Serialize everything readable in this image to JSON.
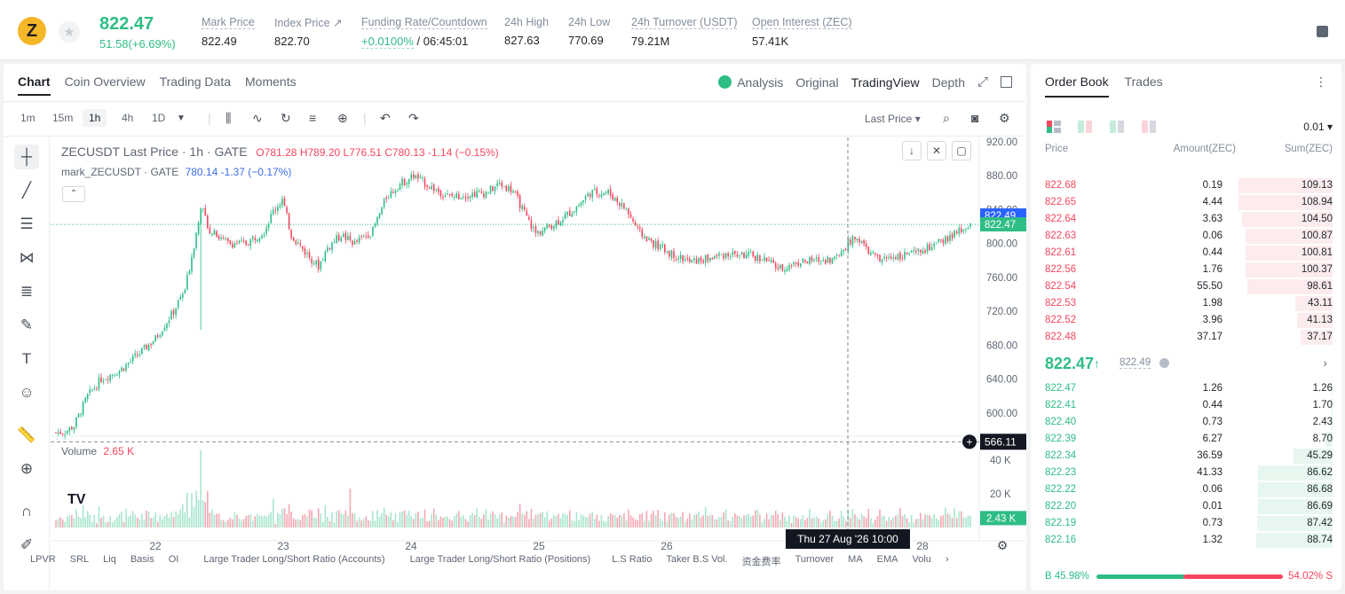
{
  "header": {
    "coin_symbol_glyph": "Z",
    "last_price": "822.47",
    "change": "51.58(+6.69%)",
    "stats": [
      {
        "label": "Mark Price",
        "value": "822.49"
      },
      {
        "label": "Index Price ↗",
        "value": "822.70"
      },
      {
        "label": "Funding Rate/Countdown",
        "value_rate": "+0.0100%",
        "value_countdown": "/ 06:45:01"
      },
      {
        "label": "24h High",
        "value": "827.63"
      },
      {
        "label": "24h Low",
        "value": "770.69"
      },
      {
        "label": "24h Turnover (USDT)",
        "value": "79.21M"
      },
      {
        "label": "Open Interest (ZEC)",
        "value": "57.41K"
      }
    ]
  },
  "chart_panel": {
    "tabs": [
      "Chart",
      "Coin Overview",
      "Trading Data",
      "Moments"
    ],
    "active_tab": "Chart",
    "right_tabs": [
      "Analysis",
      "Original",
      "TradingView",
      "Depth"
    ],
    "timeframes": [
      "1m",
      "15m",
      "1h",
      "4h",
      "1D"
    ],
    "active_timeframe": "1h",
    "price_type": "Last Price",
    "legend_symbol": "ZECUSDT Last Price · 1h · GATE",
    "legend_ohlc": {
      "o": "O781.28",
      "h": "H789.20",
      "l": "L776.51",
      "c": "C780.13",
      "chg": "-1.14 (−0.15%)"
    },
    "mark_legend": "mark_ZECUSDT · GATE",
    "mark_values": "780.14 -1.37 (−0.17%)",
    "volume_label": "Volume",
    "volume_value": "2.65 K",
    "crosshair_time": "Thu 27 Aug '26   10:00",
    "crosshair_price": "566.11",
    "mark_price_tag": "822.49",
    "last_price_tag": "822.47",
    "volume_tag": "2.43 K",
    "bottom_indicators": [
      "LPVR",
      "SRL",
      "Liq",
      "Basis",
      "OI",
      "Large Trader Long/Short Ratio (Accounts)",
      "Large Trader Long/Short Ratio (Positions)",
      "L.S Ratio",
      "Taker B.S Vol.",
      "资金费率",
      "Turnover",
      "MA",
      "EMA",
      "Volu"
    ]
  },
  "chart_data": {
    "type": "candlestick",
    "y_ticks": [
      "920.00",
      "880.00",
      "840.00",
      "800.00",
      "760.00",
      "720.00",
      "680.00",
      "640.00",
      "600.00"
    ],
    "ylim": [
      580,
      925
    ],
    "volume_ticks": [
      "40 K",
      "20 K"
    ],
    "volume_ylim": [
      0,
      50
    ],
    "x_ticks": [
      "22",
      "23",
      "24",
      "25",
      "26",
      "28"
    ],
    "anchors": [
      [
        0,
        577
      ],
      [
        4,
        578
      ],
      [
        8,
        585
      ],
      [
        14,
        620
      ],
      [
        20,
        640
      ],
      [
        28,
        650
      ],
      [
        36,
        668
      ],
      [
        44,
        688
      ],
      [
        52,
        720
      ],
      [
        57,
        745
      ],
      [
        62,
        812
      ],
      [
        64,
        845
      ],
      [
        68,
        815
      ],
      [
        76,
        800
      ],
      [
        84,
        800
      ],
      [
        92,
        815
      ],
      [
        96,
        838
      ],
      [
        100,
        852
      ],
      [
        104,
        810
      ],
      [
        110,
        790
      ],
      [
        116,
        773
      ],
      [
        120,
        795
      ],
      [
        126,
        810
      ],
      [
        132,
        800
      ],
      [
        140,
        815
      ],
      [
        146,
        855
      ],
      [
        152,
        870
      ],
      [
        158,
        880
      ],
      [
        166,
        866
      ],
      [
        174,
        855
      ],
      [
        182,
        858
      ],
      [
        190,
        860
      ],
      [
        196,
        870
      ],
      [
        202,
        862
      ],
      [
        208,
        830
      ],
      [
        212,
        812
      ],
      [
        220,
        823
      ],
      [
        228,
        838
      ],
      [
        236,
        860
      ],
      [
        244,
        860
      ],
      [
        252,
        840
      ],
      [
        258,
        812
      ],
      [
        264,
        800
      ],
      [
        272,
        788
      ],
      [
        280,
        778
      ],
      [
        288,
        782
      ],
      [
        296,
        788
      ],
      [
        304,
        786
      ],
      [
        312,
        783
      ],
      [
        320,
        770
      ],
      [
        328,
        778
      ],
      [
        336,
        780
      ],
      [
        344,
        782
      ],
      [
        350,
        800
      ],
      [
        354,
        808
      ],
      [
        358,
        793
      ],
      [
        364,
        780
      ],
      [
        372,
        786
      ],
      [
        380,
        788
      ],
      [
        390,
        800
      ],
      [
        400,
        815
      ],
      [
        404,
        822
      ]
    ],
    "candle_count": 405
  },
  "order_book": {
    "tabs": [
      "Order Book",
      "Trades"
    ],
    "precision": "0.01",
    "col_price": "Price",
    "col_amount": "Amount(ZEC)",
    "col_sum": "Sum(ZEC)",
    "asks": [
      {
        "price": "822.68",
        "amount": "0.19",
        "sum": "109.13",
        "depth": 1.0
      },
      {
        "price": "822.65",
        "amount": "4.44",
        "sum": "108.94",
        "depth": 0.998
      },
      {
        "price": "822.64",
        "amount": "3.63",
        "sum": "104.50",
        "depth": 0.958
      },
      {
        "price": "822.63",
        "amount": "0.06",
        "sum": "100.87",
        "depth": 0.924
      },
      {
        "price": "822.61",
        "amount": "0.44",
        "sum": "100.81",
        "depth": 0.924
      },
      {
        "price": "822.56",
        "amount": "1.76",
        "sum": "100.37",
        "depth": 0.92
      },
      {
        "price": "822.54",
        "amount": "55.50",
        "sum": "98.61",
        "depth": 0.904
      },
      {
        "price": "822.53",
        "amount": "1.98",
        "sum": "43.11",
        "depth": 0.395
      },
      {
        "price": "822.52",
        "amount": "3.96",
        "sum": "41.13",
        "depth": 0.377
      },
      {
        "price": "822.48",
        "amount": "37.17",
        "sum": "37.17",
        "depth": 0.341
      }
    ],
    "mid_price": "822.47",
    "mid_arrow": "↑",
    "mid_mark": "822.49",
    "bids": [
      {
        "price": "822.47",
        "amount": "1.26",
        "sum": "1.26",
        "depth": 0.012
      },
      {
        "price": "822.41",
        "amount": "0.44",
        "sum": "1.70",
        "depth": 0.016
      },
      {
        "price": "822.40",
        "amount": "0.73",
        "sum": "2.43",
        "depth": 0.022
      },
      {
        "price": "822.39",
        "amount": "6.27",
        "sum": "8.70",
        "depth": 0.08
      },
      {
        "price": "822.34",
        "amount": "36.59",
        "sum": "45.29",
        "depth": 0.415
      },
      {
        "price": "822.23",
        "amount": "41.33",
        "sum": "86.62",
        "depth": 0.794
      },
      {
        "price": "822.22",
        "amount": "0.06",
        "sum": "86.68",
        "depth": 0.794
      },
      {
        "price": "822.20",
        "amount": "0.01",
        "sum": "86.69",
        "depth": 0.794
      },
      {
        "price": "822.19",
        "amount": "0.73",
        "sum": "87.42",
        "depth": 0.801
      },
      {
        "price": "822.16",
        "amount": "1.32",
        "sum": "88.74",
        "depth": 0.813
      }
    ],
    "buy_ratio": "B 45.98%",
    "sell_ratio": "54.02% S"
  },
  "colors": {
    "up": "#2ebd85",
    "down": "#f6465d",
    "mark": "#3a6ee8"
  }
}
